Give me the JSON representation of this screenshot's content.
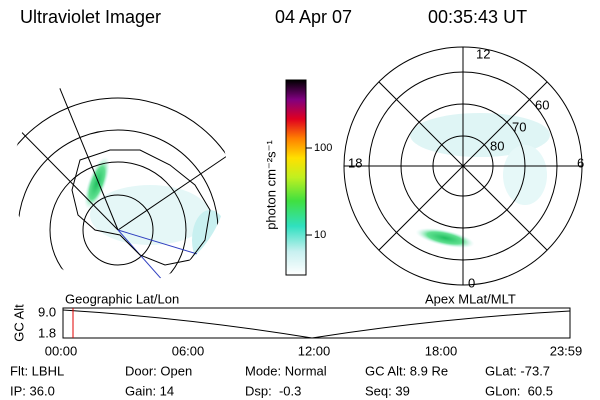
{
  "header": {
    "instrument": "Ultraviolet Imager",
    "date": "04 Apr 07",
    "time": "00:35:43 UT"
  },
  "left_panel": {
    "label": "Geographic Lat/Lon"
  },
  "right_panel": {
    "label": "Apex MLat/MLT",
    "mlt_labels": {
      "top": "12",
      "left": "18",
      "right": "6",
      "bottom": "0"
    },
    "lat_labels": [
      "80",
      "70",
      "60"
    ]
  },
  "colorbar": {
    "unit": "photon cm⁻²s⁻¹",
    "labels": [
      "100",
      "10"
    ]
  },
  "altitude_plot": {
    "axis_label": "GC Alt",
    "y_labels": [
      "9.0",
      "1.8"
    ],
    "time_labels": [
      "00:00",
      "06:00",
      "12:00",
      "18:00",
      "23:59"
    ]
  },
  "footer": {
    "rows": [
      [
        "Flt: LBHL",
        "Door: Open",
        "Mode: Normal",
        "GC Alt: 8.9 Re",
        "GLat: -73.7"
      ],
      [
        "IP: 36.0",
        "Gain: 14",
        "Dsp:  -0.3",
        "Seq: 39",
        "GLon:  60.5"
      ]
    ]
  }
}
